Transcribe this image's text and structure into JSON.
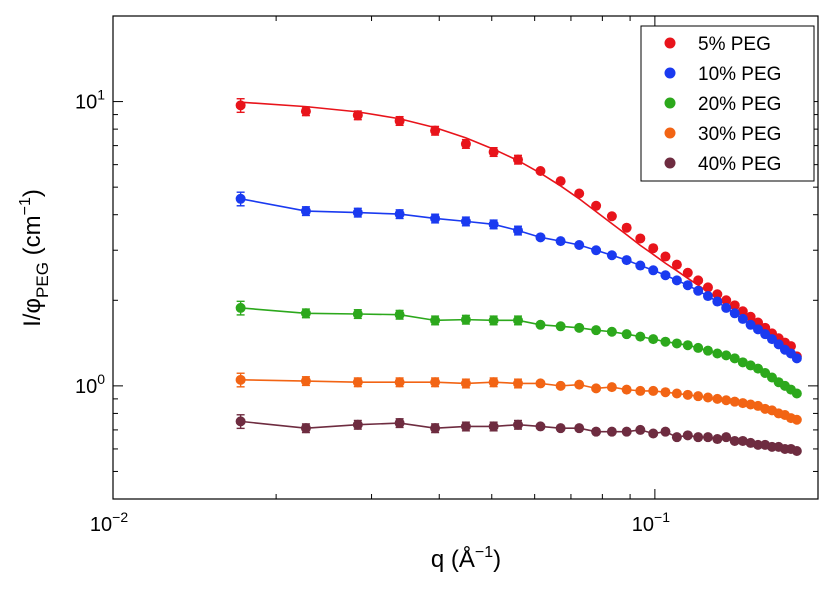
{
  "chart_data": {
    "type": "scatter",
    "xscale": "log",
    "yscale": "log",
    "xlim": [
      0.01,
      0.2
    ],
    "ylim": [
      0.4,
      20
    ],
    "xlabel": {
      "main": "q (Å",
      "sup": "−1",
      "end": ")"
    },
    "ylabel": {
      "main": "I/φ",
      "sub": "PEG",
      "rest": " (cm",
      "sup": "−1",
      "end": ")"
    },
    "x_tick_labels": [
      {
        "value": 0.01,
        "base": "10",
        "exp": "−2"
      },
      {
        "value": 0.1,
        "base": "10",
        "exp": "−1"
      }
    ],
    "y_tick_labels": [
      {
        "value": 1,
        "base": "10",
        "exp": "0"
      },
      {
        "value": 10,
        "base": "10",
        "exp": "1"
      }
    ],
    "legend_position": "top-right",
    "x": [
      0.0172,
      0.0227,
      0.0283,
      0.0338,
      0.0393,
      0.0448,
      0.0504,
      0.0559,
      0.0615,
      0.067,
      0.0725,
      0.0779,
      0.0833,
      0.0887,
      0.094,
      0.0993,
      0.1046,
      0.1098,
      0.115,
      0.1202,
      0.1253,
      0.1304,
      0.1354,
      0.1404,
      0.1453,
      0.1502,
      0.155,
      0.1598,
      0.1645,
      0.1692,
      0.1738,
      0.1783,
      0.1828
    ],
    "series": [
      {
        "name": "5% PEG",
        "color": "#e8141b",
        "values": [
          9.7,
          9.25,
          8.95,
          8.55,
          7.9,
          7.1,
          6.65,
          6.25,
          5.7,
          5.25,
          4.75,
          4.3,
          3.95,
          3.6,
          3.3,
          3.05,
          2.85,
          2.67,
          2.5,
          2.35,
          2.22,
          2.1,
          2.0,
          1.92,
          1.83,
          1.75,
          1.67,
          1.6,
          1.53,
          1.47,
          1.42,
          1.38,
          1.27
        ],
        "fit": [
          9.95,
          9.6,
          9.2,
          8.7,
          8.1,
          7.45,
          6.8,
          6.2,
          5.6,
          5.05,
          4.55,
          4.1,
          3.72,
          3.4,
          3.12,
          2.9,
          2.7,
          2.54,
          2.39,
          2.26,
          2.14,
          2.03,
          1.94,
          1.85,
          1.77,
          1.69,
          1.62,
          1.55,
          1.49,
          1.43,
          1.38,
          1.33,
          1.29
        ]
      },
      {
        "name": "10% PEG",
        "color": "#1a3af0",
        "values": [
          4.55,
          4.12,
          4.07,
          4.02,
          3.88,
          3.79,
          3.7,
          3.52,
          3.33,
          3.23,
          3.13,
          3.0,
          2.88,
          2.77,
          2.65,
          2.55,
          2.45,
          2.35,
          2.26,
          2.16,
          2.07,
          1.98,
          1.88,
          1.8,
          1.72,
          1.64,
          1.58,
          1.52,
          1.46,
          1.4,
          1.34,
          1.3,
          1.25
        ]
      },
      {
        "name": "20% PEG",
        "color": "#2ca81c",
        "values": [
          1.88,
          1.8,
          1.79,
          1.78,
          1.7,
          1.71,
          1.7,
          1.7,
          1.64,
          1.62,
          1.6,
          1.57,
          1.55,
          1.52,
          1.49,
          1.46,
          1.43,
          1.41,
          1.39,
          1.36,
          1.33,
          1.3,
          1.28,
          1.25,
          1.21,
          1.18,
          1.15,
          1.11,
          1.07,
          1.03,
          1.0,
          0.97,
          0.94
        ]
      },
      {
        "name": "30% PEG",
        "color": "#f26414",
        "values": [
          1.05,
          1.04,
          1.03,
          1.03,
          1.03,
          1.02,
          1.03,
          1.02,
          1.02,
          1.0,
          1.01,
          0.98,
          0.99,
          0.97,
          0.96,
          0.96,
          0.95,
          0.94,
          0.93,
          0.92,
          0.91,
          0.9,
          0.89,
          0.88,
          0.87,
          0.86,
          0.85,
          0.83,
          0.82,
          0.8,
          0.79,
          0.77,
          0.76
        ]
      },
      {
        "name": "40% PEG",
        "color": "#6e2c40",
        "values": [
          0.75,
          0.71,
          0.73,
          0.74,
          0.71,
          0.72,
          0.72,
          0.73,
          0.72,
          0.71,
          0.71,
          0.69,
          0.69,
          0.69,
          0.7,
          0.68,
          0.69,
          0.66,
          0.67,
          0.66,
          0.66,
          0.65,
          0.66,
          0.64,
          0.64,
          0.63,
          0.62,
          0.62,
          0.61,
          0.61,
          0.6,
          0.6,
          0.59
        ]
      }
    ]
  }
}
